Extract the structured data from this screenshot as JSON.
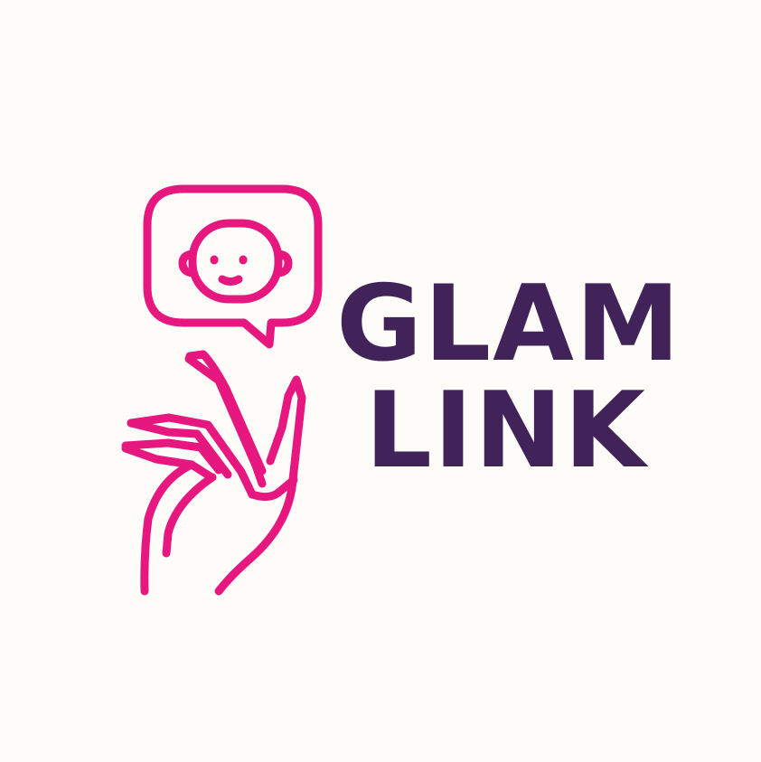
{
  "brand": {
    "name_line_1": "GLAM",
    "name_line_2": "LINK"
  },
  "colors": {
    "icon_pink": "#e6187f",
    "text_purple": "#41235a",
    "background": "#fdfcf9"
  },
  "icons": [
    "speech-bubble-icon",
    "robot-face-icon",
    "hand-icon"
  ]
}
